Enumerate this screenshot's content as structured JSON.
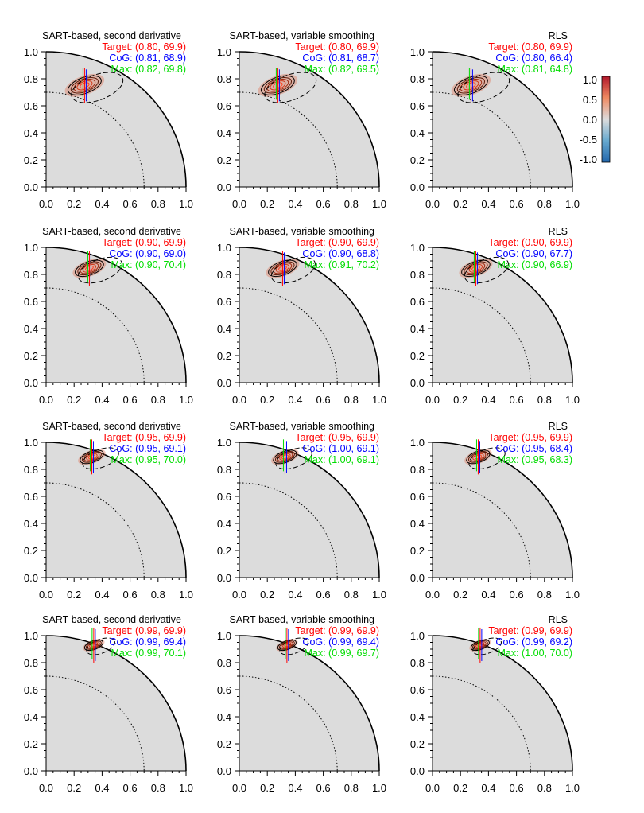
{
  "colors": {
    "target": "#ff0000",
    "cog": "#0000ff",
    "max": "#00dd00",
    "background": "#dcdcdc",
    "contour_positive": "#000000"
  },
  "colorbar": {
    "ticks": [
      "1.0",
      "0.5",
      "0.0",
      "-0.5",
      "-1.0"
    ],
    "range": [
      -1.0,
      1.0
    ]
  },
  "chart_data": [
    {
      "type": "heatmap",
      "title": "SART-based, second derivative",
      "target": "Target: (0.80, 69.9)",
      "cog": "CoG: (0.81, 68.9)",
      "max": "Max: (0.82, 69.8)",
      "r": 0.8,
      "theta": 69.9,
      "xlim": [
        0.0,
        1.0
      ],
      "ylim": [
        0.0,
        1.0
      ],
      "xticks": [
        "0.0",
        "0.2",
        "0.4",
        "0.6",
        "0.8",
        "1.0"
      ],
      "yticks": [
        "0.0",
        "0.2",
        "0.4",
        "0.6",
        "0.8",
        "1.0"
      ]
    },
    {
      "type": "heatmap",
      "title": "SART-based, variable smoothing",
      "target": "Target: (0.80, 69.9)",
      "cog": "CoG: (0.81, 68.7)",
      "max": "Max: (0.82, 69.5)",
      "r": 0.8,
      "theta": 69.9,
      "xlim": [
        0.0,
        1.0
      ],
      "ylim": [
        0.0,
        1.0
      ],
      "xticks": [
        "0.0",
        "0.2",
        "0.4",
        "0.6",
        "0.8",
        "1.0"
      ],
      "yticks": [
        "0.0",
        "0.2",
        "0.4",
        "0.6",
        "0.8",
        "1.0"
      ]
    },
    {
      "type": "heatmap",
      "title": "RLS",
      "target": "Target: (0.80, 69.9)",
      "cog": "CoG: (0.80, 66.4)",
      "max": "Max: (0.81, 64.8)",
      "r": 0.8,
      "theta": 69.9,
      "xlim": [
        0.0,
        1.0
      ],
      "ylim": [
        0.0,
        1.0
      ],
      "xticks": [
        "0.0",
        "0.2",
        "0.4",
        "0.6",
        "0.8",
        "1.0"
      ],
      "yticks": [
        "0.0",
        "0.2",
        "0.4",
        "0.6",
        "0.8",
        "1.0"
      ]
    },
    {
      "type": "heatmap",
      "title": "SART-based, second derivative",
      "target": "Target: (0.90, 69.9)",
      "cog": "CoG: (0.90, 69.0)",
      "max": "Max: (0.90, 70.4)",
      "r": 0.9,
      "theta": 69.9,
      "xlim": [
        0.0,
        1.0
      ],
      "ylim": [
        0.0,
        1.0
      ],
      "xticks": [
        "0.0",
        "0.2",
        "0.4",
        "0.6",
        "0.8",
        "1.0"
      ],
      "yticks": [
        "0.0",
        "0.2",
        "0.4",
        "0.6",
        "0.8",
        "1.0"
      ]
    },
    {
      "type": "heatmap",
      "title": "SART-based, variable smoothing",
      "target": "Target: (0.90, 69.9)",
      "cog": "CoG: (0.90, 68.8)",
      "max": "Max: (0.91, 70.2)",
      "r": 0.9,
      "theta": 69.9,
      "xlim": [
        0.0,
        1.0
      ],
      "ylim": [
        0.0,
        1.0
      ],
      "xticks": [
        "0.0",
        "0.2",
        "0.4",
        "0.6",
        "0.8",
        "1.0"
      ],
      "yticks": [
        "0.0",
        "0.2",
        "0.4",
        "0.6",
        "0.8",
        "1.0"
      ]
    },
    {
      "type": "heatmap",
      "title": "RLS",
      "target": "Target: (0.90, 69.9)",
      "cog": "CoG: (0.90, 67.7)",
      "max": "Max: (0.90, 66.9)",
      "r": 0.9,
      "theta": 69.9,
      "xlim": [
        0.0,
        1.0
      ],
      "ylim": [
        0.0,
        1.0
      ],
      "xticks": [
        "0.0",
        "0.2",
        "0.4",
        "0.6",
        "0.8",
        "1.0"
      ],
      "yticks": [
        "0.0",
        "0.2",
        "0.4",
        "0.6",
        "0.8",
        "1.0"
      ]
    },
    {
      "type": "heatmap",
      "title": "SART-based, second derivative",
      "target": "Target: (0.95, 69.9)",
      "cog": "CoG: (0.95, 69.1)",
      "max": "Max: (0.95, 70.0)",
      "r": 0.95,
      "theta": 69.9,
      "xlim": [
        0.0,
        1.0
      ],
      "ylim": [
        0.0,
        1.0
      ],
      "xticks": [
        "0.0",
        "0.2",
        "0.4",
        "0.6",
        "0.8",
        "1.0"
      ],
      "yticks": [
        "0.0",
        "0.2",
        "0.4",
        "0.6",
        "0.8",
        "1.0"
      ]
    },
    {
      "type": "heatmap",
      "title": "SART-based, variable smoothing",
      "target": "Target: (0.95, 69.9)",
      "cog": "CoG: (1.00, 69.1)",
      "max": "Max: (1.00, 69.1)",
      "r": 0.95,
      "theta": 69.9,
      "xlim": [
        0.0,
        1.0
      ],
      "ylim": [
        0.0,
        1.0
      ],
      "xticks": [
        "0.0",
        "0.2",
        "0.4",
        "0.6",
        "0.8",
        "1.0"
      ],
      "yticks": [
        "0.0",
        "0.2",
        "0.4",
        "0.6",
        "0.8",
        "1.0"
      ]
    },
    {
      "type": "heatmap",
      "title": "RLS",
      "target": "Target: (0.95, 69.9)",
      "cog": "CoG: (0.95, 68.4)",
      "max": "Max: (0.95, 68.3)",
      "r": 0.95,
      "theta": 69.9,
      "xlim": [
        0.0,
        1.0
      ],
      "ylim": [
        0.0,
        1.0
      ],
      "xticks": [
        "0.0",
        "0.2",
        "0.4",
        "0.6",
        "0.8",
        "1.0"
      ],
      "yticks": [
        "0.0",
        "0.2",
        "0.4",
        "0.6",
        "0.8",
        "1.0"
      ]
    },
    {
      "type": "heatmap",
      "title": "SART-based, second derivative",
      "target": "Target: (0.99, 69.9)",
      "cog": "CoG: (0.99, 69.4)",
      "max": "Max: (0.99, 70.1)",
      "r": 0.99,
      "theta": 69.9,
      "xlim": [
        0.0,
        1.0
      ],
      "ylim": [
        0.0,
        1.0
      ],
      "xticks": [
        "0.0",
        "0.2",
        "0.4",
        "0.6",
        "0.8",
        "1.0"
      ],
      "yticks": [
        "0.0",
        "0.2",
        "0.4",
        "0.6",
        "0.8",
        "1.0"
      ]
    },
    {
      "type": "heatmap",
      "title": "SART-based, variable smoothing",
      "target": "Target: (0.99, 69.9)",
      "cog": "CoG: (0.99, 69.4)",
      "max": "Max: (0.99, 69.7)",
      "r": 0.99,
      "theta": 69.9,
      "xlim": [
        0.0,
        1.0
      ],
      "ylim": [
        0.0,
        1.0
      ],
      "xticks": [
        "0.0",
        "0.2",
        "0.4",
        "0.6",
        "0.8",
        "1.0"
      ],
      "yticks": [
        "0.0",
        "0.2",
        "0.4",
        "0.6",
        "0.8",
        "1.0"
      ]
    },
    {
      "type": "heatmap",
      "title": "RLS",
      "target": "Target: (0.99, 69.9)",
      "cog": "CoG: (0.99, 69.2)",
      "max": "Max: (1.00, 70.0)",
      "r": 0.99,
      "theta": 69.9,
      "xlim": [
        0.0,
        1.0
      ],
      "ylim": [
        0.0,
        1.0
      ],
      "xticks": [
        "0.0",
        "0.2",
        "0.4",
        "0.6",
        "0.8",
        "1.0"
      ],
      "yticks": [
        "0.0",
        "0.2",
        "0.4",
        "0.6",
        "0.8",
        "1.0"
      ]
    }
  ]
}
